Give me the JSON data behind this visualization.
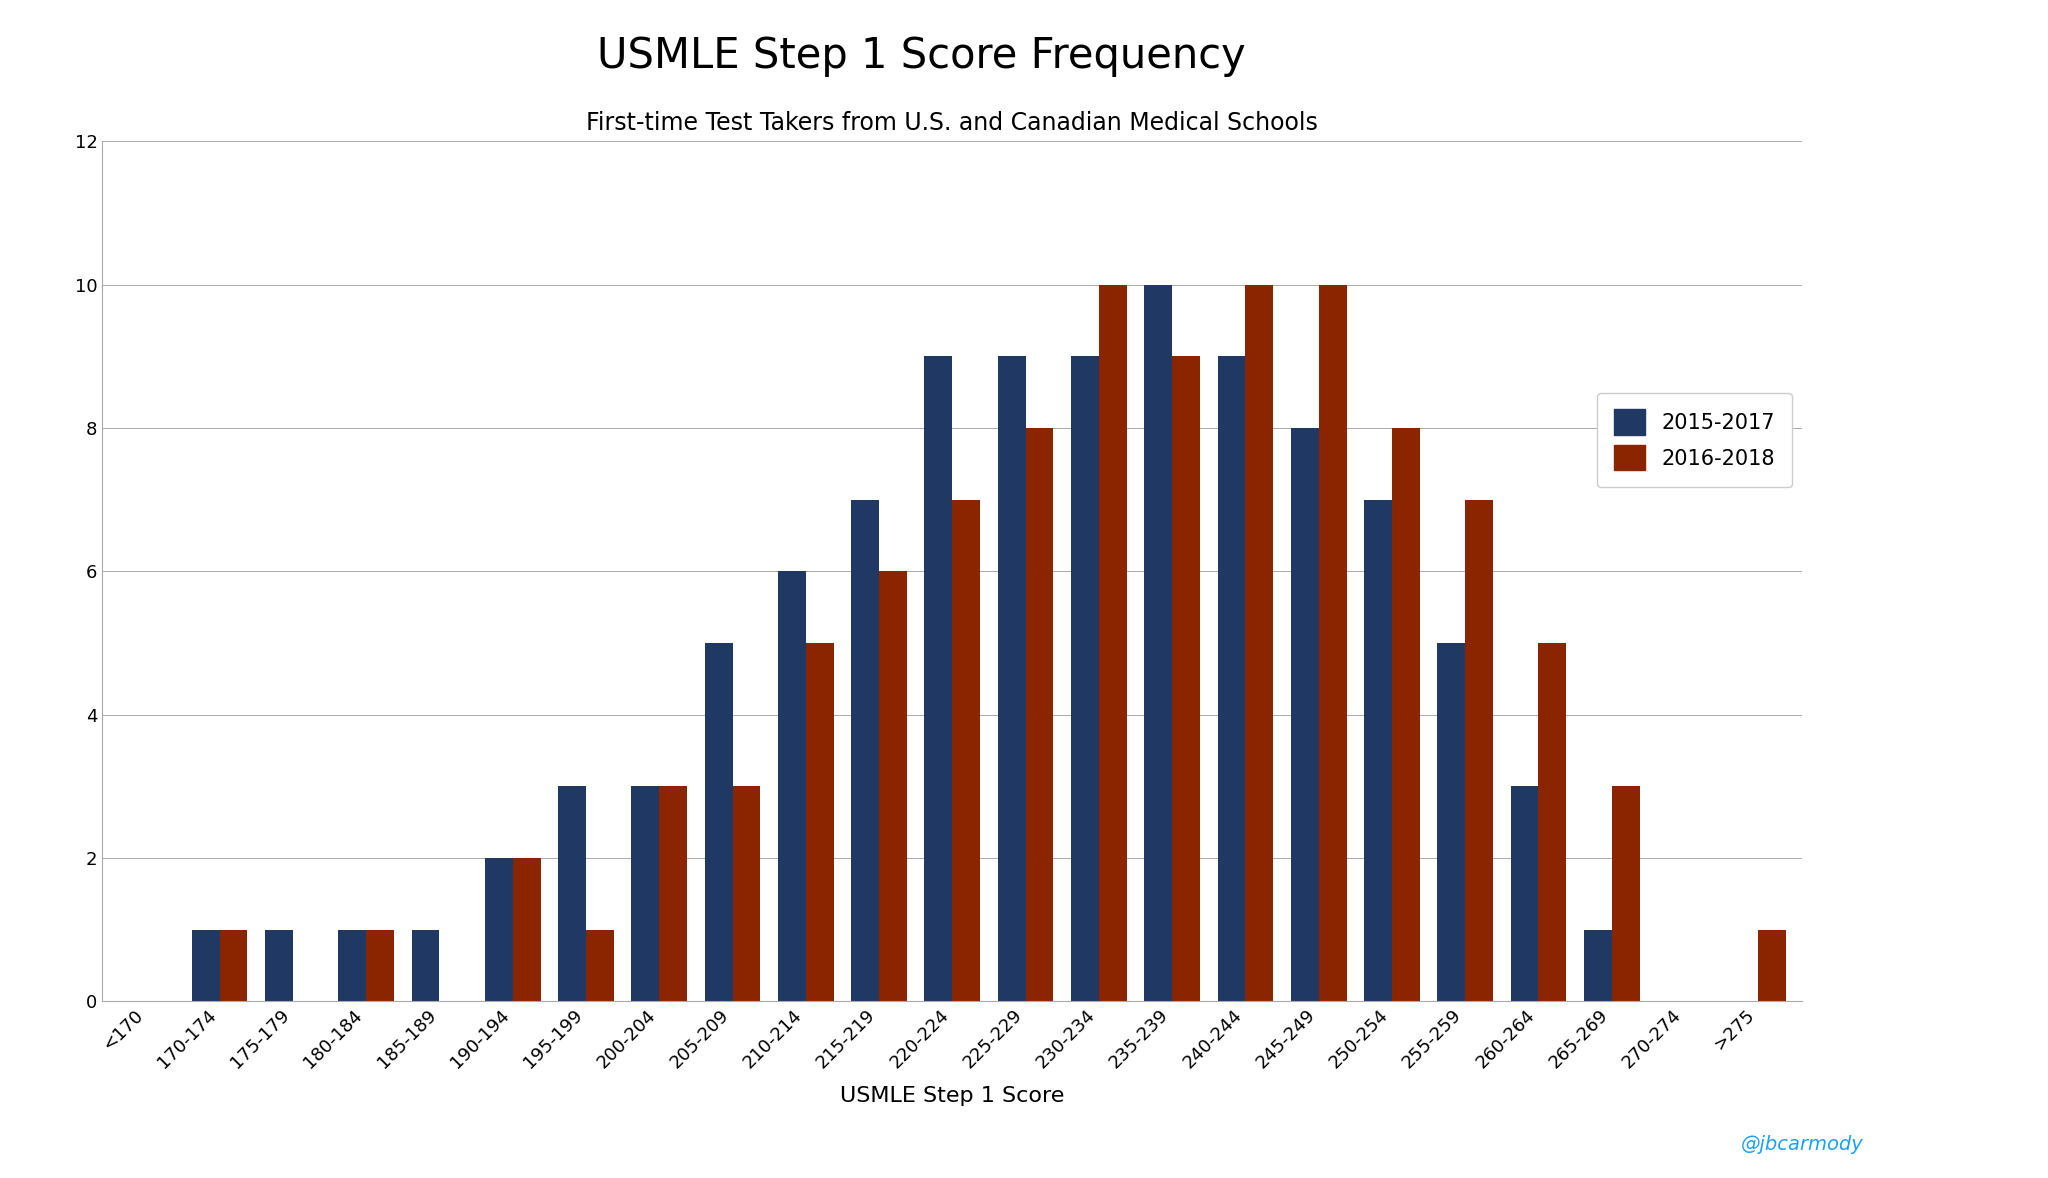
{
  "title": "USMLE Step 1 Score Frequency",
  "subtitle": "First-time Test Takers from U.S. and Canadian Medical Schools",
  "xlabel": "USMLE Step 1 Score",
  "ylabel": "",
  "categories": [
    "<170",
    "170-174",
    "175-179",
    "180-184",
    "185-189",
    "190-194",
    "195-199",
    "200-204",
    "205-209",
    "210-214",
    "215-219",
    "220-224",
    "225-229",
    "230-234",
    "235-239",
    "240-244",
    "245-249",
    "250-254",
    "255-259",
    "260-264",
    "265-269",
    "270-274",
    ">275"
  ],
  "series_2015_2017": [
    0,
    1,
    1,
    1,
    1,
    2,
    3,
    3,
    5,
    6,
    7,
    9,
    9,
    9,
    10,
    9,
    8,
    7,
    5,
    3,
    1,
    0,
    0
  ],
  "series_2016_2018": [
    0,
    1,
    0,
    1,
    0,
    2,
    1,
    3,
    3,
    5,
    6,
    7,
    8,
    10,
    9,
    10,
    10,
    8,
    7,
    5,
    3,
    0,
    1
  ],
  "color_2015_2017": "#1F3864",
  "color_2016_2018": "#8B2500",
  "ylim": [
    0,
    12
  ],
  "yticks": [
    0,
    2,
    4,
    6,
    8,
    10,
    12
  ],
  "background_color": "#FFFFFF",
  "legend_labels": [
    "2015-2017",
    "2016-2018"
  ],
  "twitter_handle": "@jbcarmody",
  "bar_width": 0.38,
  "title_fontsize": 30,
  "subtitle_fontsize": 17,
  "xlabel_fontsize": 16,
  "tick_fontsize": 13,
  "legend_fontsize": 15
}
